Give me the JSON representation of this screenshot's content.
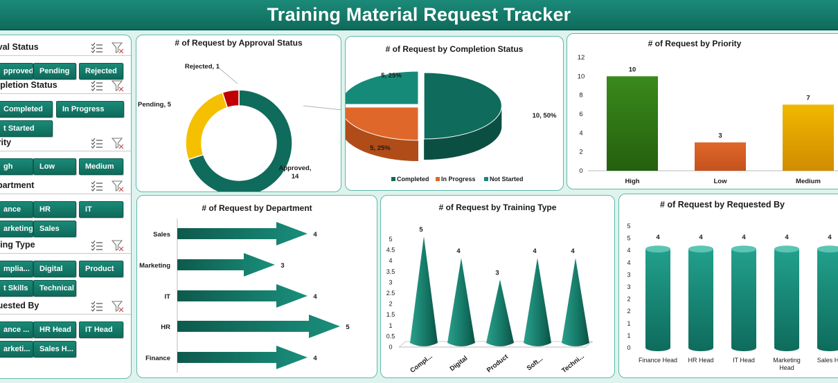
{
  "header": {
    "title": "Training Material Request Tracker"
  },
  "slicers": [
    {
      "title": "Approval Status",
      "shown": "oval Status",
      "items": [
        "pproved",
        "Pending",
        "Rejected"
      ]
    },
    {
      "title": "Completion Status",
      "shown": "mpletion Status",
      "items": [
        "Completed",
        "In Progress",
        "t Started"
      ]
    },
    {
      "title": "Priority",
      "shown": "ority",
      "items": [
        "gh",
        "Low",
        "Medium"
      ]
    },
    {
      "title": "Department",
      "shown": "epartment",
      "items": [
        "ance",
        "HR",
        "IT",
        "arketing",
        "Sales"
      ]
    },
    {
      "title": "Training Type",
      "shown": "ining Type",
      "items": [
        "mplia...",
        "Digital",
        "Product",
        "t Skills",
        "Technical"
      ]
    },
    {
      "title": "Requested By",
      "shown": "quested By",
      "items": [
        "ance ...",
        "HR Head",
        "IT Head",
        "arketi...",
        "Sales H..."
      ]
    }
  ],
  "chart_data": [
    {
      "type": "pie",
      "variant": "doughnut",
      "title": "# of Request by Approval Status",
      "categories": [
        "Approved",
        "Pending",
        "Rejected"
      ],
      "values": [
        14,
        5,
        1
      ],
      "data_labels": [
        "Approved, 14",
        "Pending, 5",
        "Rejected, 1"
      ],
      "colors": [
        "#0f6b5c",
        "#f5c000",
        "#c00000"
      ]
    },
    {
      "type": "pie",
      "variant": "3d",
      "title": "# of Request by Completion Status",
      "categories": [
        "Completed",
        "In Progress",
        "Not Started"
      ],
      "values": [
        10,
        5,
        5
      ],
      "data_labels": [
        "10, 50%",
        "5, 25%",
        "5, 25%"
      ],
      "legend": "bottom",
      "colors": [
        "#0f6b5c",
        "#e0672a",
        "#168a78"
      ]
    },
    {
      "type": "bar",
      "title": "# of Request by Priority",
      "categories": [
        "High",
        "Low",
        "Medium"
      ],
      "values": [
        10,
        3,
        7
      ],
      "ylim": [
        0,
        12
      ],
      "yticks": [
        "0",
        "2",
        "4",
        "6",
        "8",
        "10",
        "12"
      ],
      "colors": [
        "#3a8a1c",
        "#e0672a",
        "#f0b800"
      ]
    },
    {
      "type": "bar",
      "orientation": "horizontal",
      "variant": "arrow",
      "title": "# of Request by Department",
      "categories": [
        "Sales",
        "Marketing",
        "IT",
        "HR",
        "Finance"
      ],
      "values": [
        4,
        3,
        4,
        5,
        4
      ],
      "color": "#0f6b5c"
    },
    {
      "type": "bar",
      "variant": "cone",
      "title": "# of Request by Training Type",
      "categories": [
        "Compl...",
        "Digital",
        "Product",
        "Soft...",
        "Techni..."
      ],
      "values": [
        5,
        4,
        3,
        4,
        4
      ],
      "ylim": [
        0,
        5
      ],
      "yticks": [
        "0",
        "0.5",
        "1",
        "1.5",
        "2",
        "2.5",
        "3",
        "3.5",
        "4",
        "4.5",
        "5"
      ],
      "color": "#1a8a78"
    },
    {
      "type": "bar",
      "variant": "cylinder",
      "title": "# of Request by Requested By",
      "categories": [
        "Finance Head",
        "HR Head",
        "IT Head",
        "Marketing Head",
        "Sales Head"
      ],
      "shown_categories": [
        "Finance Head",
        "HR Head",
        "IT Head",
        [
          "Marketing",
          "Head"
        ],
        "Sales He"
      ],
      "values": [
        4,
        4,
        4,
        4,
        4
      ],
      "ylim": [
        0,
        5
      ],
      "yticks": [
        "0",
        "1",
        "1",
        "2",
        "2",
        "3",
        "3",
        "4",
        "4",
        "5",
        "5"
      ],
      "color": "#1a9a88"
    }
  ]
}
